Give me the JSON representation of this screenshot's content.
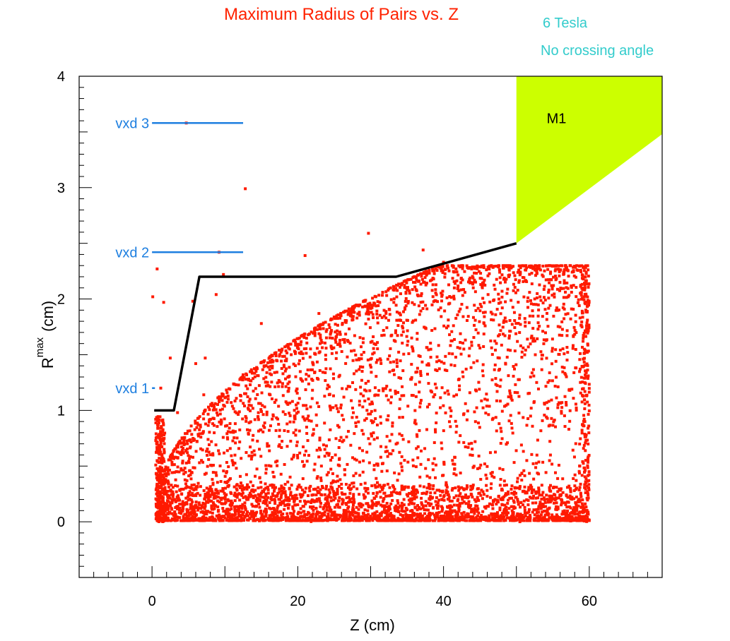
{
  "colors": {
    "title": "#ff2200",
    "annotation": "#33cccc",
    "points": "#ff1a00",
    "detector_labels": "#1e7fe0",
    "boundary": "#000000",
    "m1_fill": "#ccff00",
    "axis": "#000000",
    "background": "#ffffff"
  },
  "chart_data": {
    "type": "scatter",
    "title": "Maximum Radius of Pairs vs. Z",
    "annotations": [
      "6 Tesla",
      "No crossing angle"
    ],
    "xlabel": "Z (cm)",
    "ylabel_main": "R",
    "ylabel_sup": "max",
    "ylabel_unit": "(cm)",
    "xlim": [
      -10,
      70
    ],
    "ylim": [
      -0.5,
      4
    ],
    "xticks": [
      0,
      20,
      40,
      60
    ],
    "yticks": [
      0,
      1,
      2,
      3,
      4
    ],
    "grid": false,
    "detector_layers": [
      {
        "label": "vxd 1",
        "r": 1.2,
        "z": [
          0,
          0.4
        ]
      },
      {
        "label": "vxd 2",
        "r": 2.42,
        "z": [
          0,
          12.5
        ]
      },
      {
        "label": "vxd 3",
        "r": 3.58,
        "z": [
          0,
          12.5
        ]
      }
    ],
    "boundary_line": {
      "x": [
        0.3,
        3,
        6.5,
        33.5,
        50
      ],
      "y": [
        1.0,
        1.0,
        2.2,
        2.2,
        2.5
      ]
    },
    "m1_region": {
      "label": "M1",
      "x": [
        50,
        50,
        70,
        70
      ],
      "y": [
        2.5,
        4.0,
        4.0,
        3.48
      ]
    },
    "series": [
      {
        "points_sampled": [
          [
            4.7,
            3.58
          ],
          [
            12.8,
            2.99
          ],
          [
            29.7,
            2.59
          ],
          [
            37.2,
            2.44
          ],
          [
            21.0,
            2.39
          ],
          [
            9.2,
            2.42
          ],
          [
            40.0,
            2.33
          ],
          [
            0.7,
            2.27
          ],
          [
            0.1,
            2.02
          ],
          [
            1.6,
            1.97
          ],
          [
            9.8,
            2.22
          ],
          [
            8.8,
            2.04
          ],
          [
            35.1,
            2.09
          ],
          [
            22.9,
            1.87
          ],
          [
            2.5,
            1.47
          ],
          [
            5.6,
            1.98
          ],
          [
            15.0,
            1.78
          ],
          [
            12.5,
            1.32
          ],
          [
            7.3,
            1.47
          ],
          [
            7.1,
            1.14
          ],
          [
            1.2,
            1.2
          ],
          [
            0.5,
            0.92
          ],
          [
            1.0,
            0.75
          ],
          [
            3.5,
            0.98
          ],
          [
            6.0,
            1.42
          ]
        ]
      }
    ]
  }
}
